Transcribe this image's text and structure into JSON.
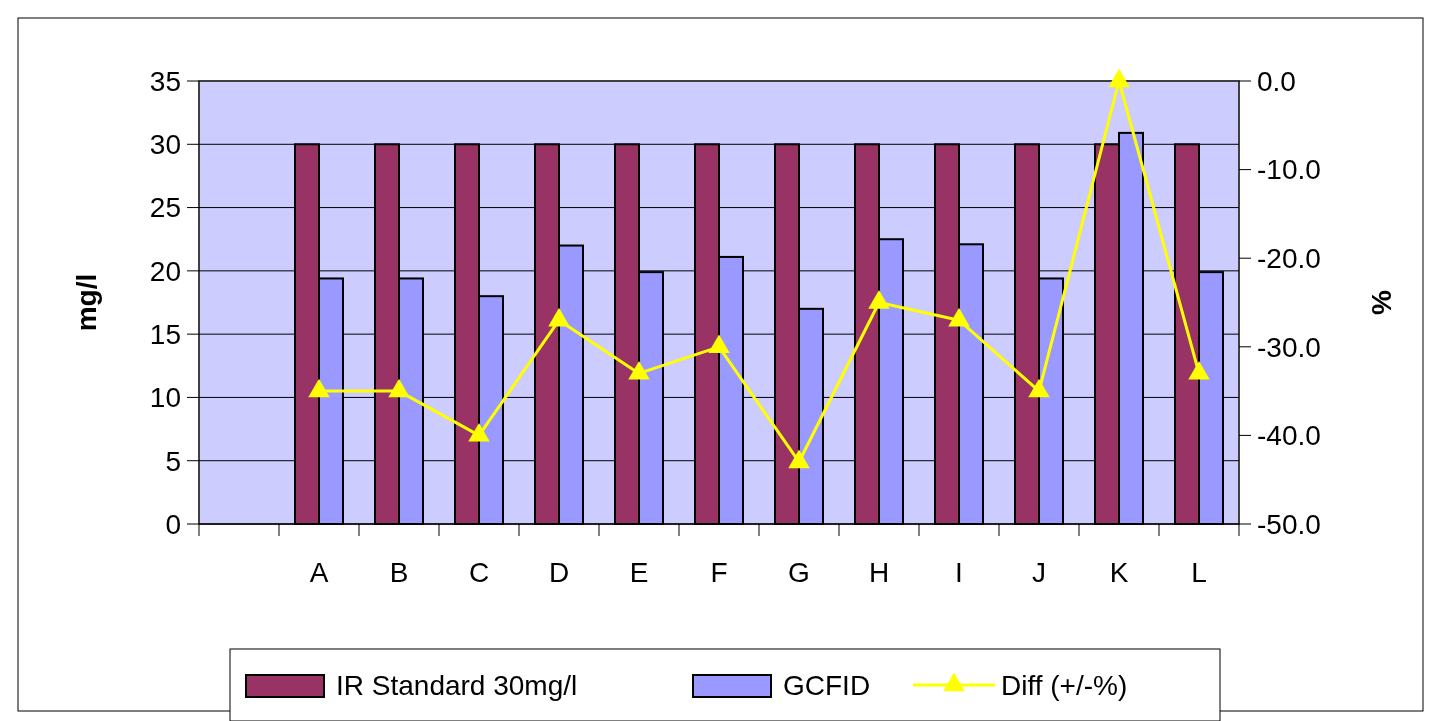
{
  "chart_data": {
    "type": "bar",
    "categories": [
      null,
      "A",
      "B",
      "C",
      "D",
      "E",
      "F",
      "G",
      "H",
      "I",
      "J",
      "K",
      "L"
    ],
    "series": [
      {
        "name": "IR Standard 30mg/l",
        "color": "#993366",
        "values": [
          null,
          30,
          30,
          30,
          30,
          30,
          30,
          30,
          30,
          30,
          30,
          30,
          30
        ]
      },
      {
        "name": "GCFID",
        "color": "#9999ff",
        "values": [
          null,
          19.4,
          19.4,
          18.0,
          22.0,
          19.9,
          21.1,
          17.0,
          22.5,
          22.1,
          19.4,
          30.9,
          19.9
        ]
      },
      {
        "name": "Diff (+/-%)",
        "type": "line",
        "axis": "y2",
        "color": "#ffff00",
        "marker": "triangle",
        "values": [
          null,
          -35,
          -35,
          -40,
          -27,
          -33,
          -30,
          -43,
          -25,
          -27,
          -35,
          0,
          -33
        ]
      }
    ],
    "ylabel": "mg/l",
    "y2label": "%",
    "ylim": [
      0,
      35
    ],
    "yticks": [
      0,
      5,
      10,
      15,
      20,
      25,
      30,
      35
    ],
    "y2lim": [
      -50,
      0
    ],
    "y2ticks": [
      {
        "value": -50,
        "label": "-50.0"
      },
      {
        "value": -40,
        "label": "-40.0"
      },
      {
        "value": -30,
        "label": "-30.0"
      },
      {
        "value": -20,
        "label": "-20.0"
      },
      {
        "value": -10,
        "label": "-10.0"
      },
      {
        "value": 0,
        "label": "0.0"
      }
    ],
    "grid": "y",
    "legend": "bottom"
  }
}
